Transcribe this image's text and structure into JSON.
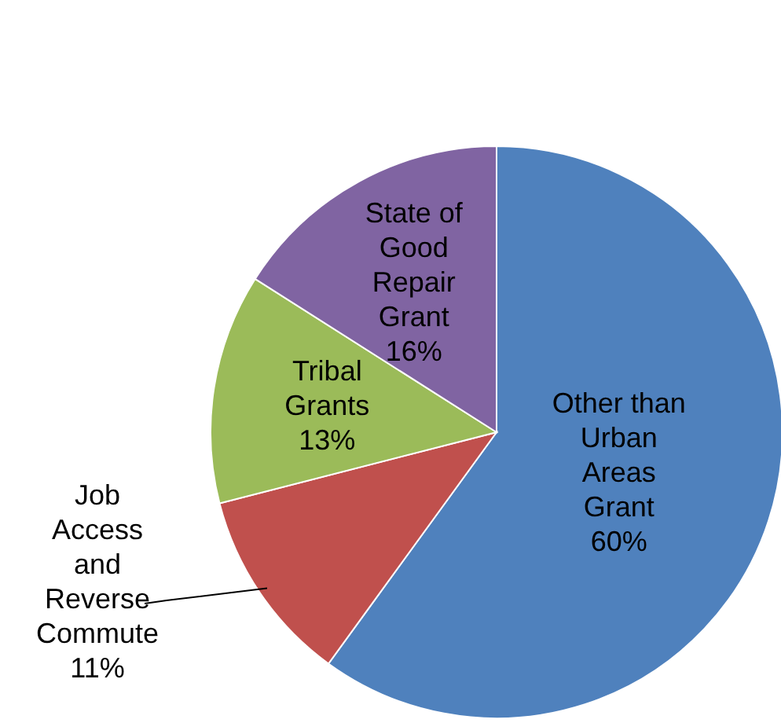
{
  "chart_data": {
    "type": "pie",
    "categories": [
      "Other than Urban Areas Grant",
      "Job Access and Reverse Commute",
      "Tribal Grants",
      "State of Good Repair Grant"
    ],
    "values": [
      60,
      11,
      13,
      16
    ],
    "colors": [
      "#4f81bd",
      "#c0504d",
      "#9bbb59",
      "#8064a2"
    ],
    "value_labels": [
      "60%",
      "11%",
      "13%",
      "16%"
    ]
  }
}
